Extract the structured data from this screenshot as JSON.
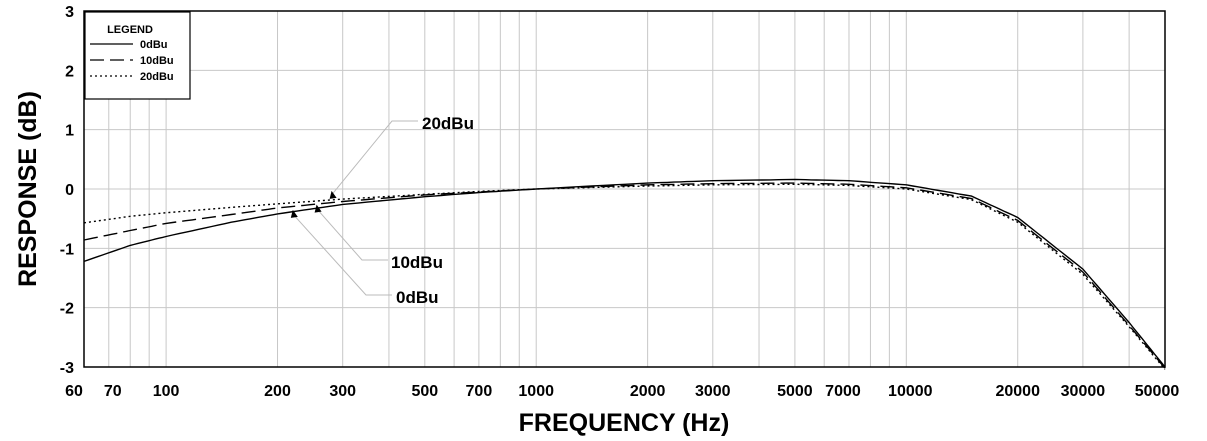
{
  "chart_data": {
    "type": "line",
    "xlabel": "FREQUENCY (Hz)",
    "ylabel": "RESPONSE (dB)",
    "xscale": "log",
    "xlim": [
      60,
      50000
    ],
    "ylim": [
      -3,
      3
    ],
    "grid": true,
    "x_tick_labels": [
      "60",
      "70",
      "100",
      "200",
      "300",
      "500",
      "700",
      "1000",
      "2000",
      "3000",
      "5000",
      "7000",
      "10000",
      "20000",
      "30000",
      "50000"
    ],
    "y_tick_labels": [
      "3",
      "2",
      "1",
      "0",
      "-1",
      "-2",
      "-3"
    ],
    "legend": {
      "title": "LEGEND",
      "position": "top-left",
      "entries": [
        "0dBu",
        "10dBu",
        "20dBu"
      ]
    },
    "series": [
      {
        "name": "0dBu",
        "style": "solid",
        "x": [
          60,
          80,
          100,
          150,
          200,
          300,
          500,
          700,
          1000,
          2000,
          3000,
          5000,
          7000,
          10000,
          15000,
          20000,
          30000,
          40000,
          50000
        ],
        "y": [
          -1.22,
          -0.95,
          -0.8,
          -0.56,
          -0.42,
          -0.26,
          -0.13,
          -0.06,
          0.0,
          0.1,
          0.14,
          0.16,
          0.14,
          0.07,
          -0.12,
          -0.48,
          -1.35,
          -2.25,
          -3.0
        ]
      },
      {
        "name": "10dBu",
        "style": "dashed",
        "x": [
          60,
          80,
          100,
          150,
          200,
          300,
          500,
          700,
          1000,
          2000,
          3000,
          5000,
          7000,
          10000,
          15000,
          20000,
          30000,
          40000,
          50000
        ],
        "y": [
          -0.86,
          -0.7,
          -0.58,
          -0.43,
          -0.32,
          -0.21,
          -0.1,
          -0.05,
          0.0,
          0.07,
          0.09,
          0.1,
          0.08,
          0.02,
          -0.16,
          -0.53,
          -1.4,
          -2.3,
          -3.02
        ]
      },
      {
        "name": "20dBu",
        "style": "dotted",
        "x": [
          60,
          80,
          100,
          150,
          200,
          300,
          500,
          700,
          1000,
          2000,
          3000,
          5000,
          7000,
          10000,
          15000,
          20000,
          30000,
          40000,
          50000
        ],
        "y": [
          -0.57,
          -0.46,
          -0.4,
          -0.31,
          -0.25,
          -0.17,
          -0.09,
          -0.04,
          0.0,
          0.05,
          0.07,
          0.08,
          0.06,
          0.0,
          -0.18,
          -0.56,
          -1.44,
          -2.32,
          -3.04
        ]
      }
    ],
    "annotations": [
      {
        "text": "20dBu",
        "x": 280,
        "y": -0.1
      },
      {
        "text": "10dBu",
        "x": 255,
        "y": -0.33
      },
      {
        "text": "0dBu",
        "x": 220,
        "y": -0.42
      }
    ]
  }
}
